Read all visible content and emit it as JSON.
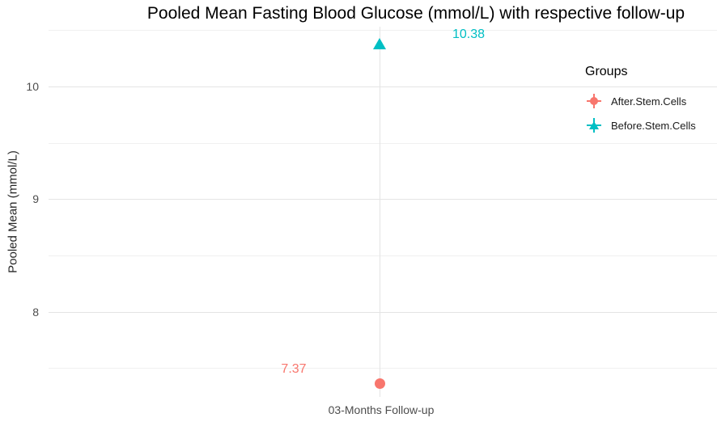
{
  "chart_data": {
    "type": "scatter",
    "title": "Pooled Mean Fasting Blood Glucose (mmol/L) with respective follow-up",
    "xlabel": "",
    "ylabel": "Pooled Mean (mmol/L)",
    "categories": [
      "03-Months Follow-up"
    ],
    "legend_title": "Groups",
    "legend_position": "inside-top-right",
    "series": [
      {
        "name": "After.Stem.Cells",
        "marker": "circle",
        "color": "#F8766D",
        "values": [
          7.37
        ],
        "value_labels": [
          "7.37"
        ]
      },
      {
        "name": "Before.Stem.Cells",
        "marker": "triangle",
        "color": "#00BFC4",
        "values": [
          10.38
        ],
        "value_labels": [
          "10.38"
        ]
      }
    ],
    "yticks": [
      8,
      9,
      10
    ],
    "yticks_minor": [
      7.5,
      8.5,
      9.5,
      10.5
    ],
    "ylim": [
      7.245,
      10.532
    ],
    "grid": true
  }
}
